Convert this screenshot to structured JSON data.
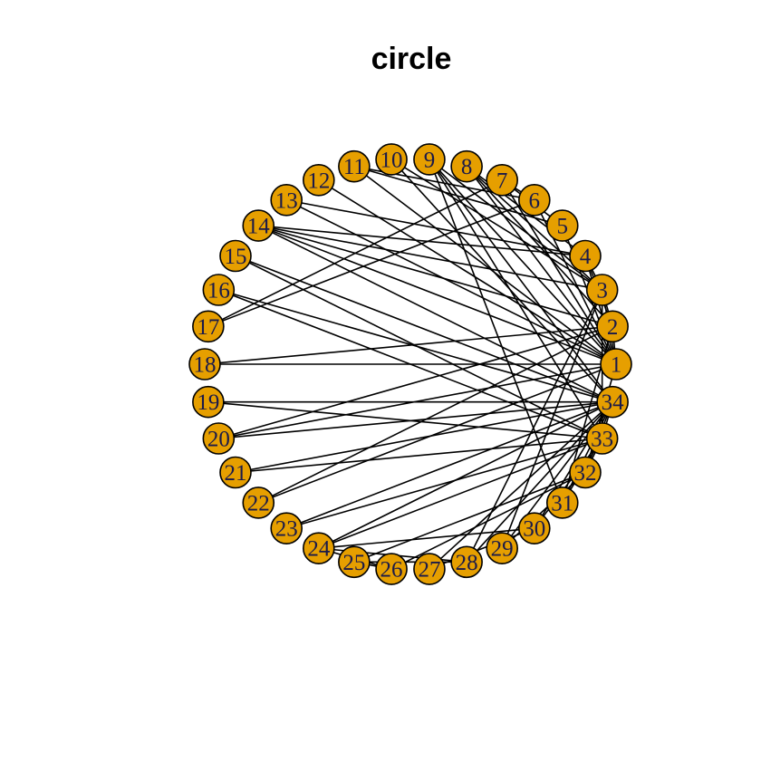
{
  "title": "circle",
  "colors": {
    "node_fill": "#E69F00",
    "node_stroke": "#000000",
    "edge": "#000000",
    "label": "#1a1a4a"
  },
  "nodes": [
    "1",
    "2",
    "3",
    "4",
    "5",
    "6",
    "7",
    "8",
    "9",
    "10",
    "11",
    "12",
    "13",
    "14",
    "15",
    "16",
    "17",
    "18",
    "19",
    "20",
    "21",
    "22",
    "23",
    "24",
    "25",
    "26",
    "27",
    "28",
    "29",
    "30",
    "31",
    "32",
    "33",
    "34"
  ],
  "edges": [
    [
      1,
      2
    ],
    [
      1,
      3
    ],
    [
      1,
      4
    ],
    [
      1,
      5
    ],
    [
      1,
      6
    ],
    [
      1,
      7
    ],
    [
      1,
      8
    ],
    [
      1,
      9
    ],
    [
      1,
      11
    ],
    [
      1,
      12
    ],
    [
      1,
      13
    ],
    [
      1,
      14
    ],
    [
      1,
      18
    ],
    [
      1,
      20
    ],
    [
      1,
      22
    ],
    [
      1,
      32
    ],
    [
      2,
      3
    ],
    [
      2,
      4
    ],
    [
      2,
      8
    ],
    [
      2,
      14
    ],
    [
      2,
      18
    ],
    [
      2,
      20
    ],
    [
      2,
      22
    ],
    [
      2,
      31
    ],
    [
      3,
      4
    ],
    [
      3,
      8
    ],
    [
      3,
      9
    ],
    [
      3,
      10
    ],
    [
      3,
      14
    ],
    [
      3,
      28
    ],
    [
      3,
      29
    ],
    [
      3,
      33
    ],
    [
      4,
      8
    ],
    [
      4,
      13
    ],
    [
      4,
      14
    ],
    [
      5,
      7
    ],
    [
      5,
      11
    ],
    [
      6,
      7
    ],
    [
      6,
      11
    ],
    [
      6,
      17
    ],
    [
      7,
      17
    ],
    [
      9,
      31
    ],
    [
      9,
      33
    ],
    [
      9,
      34
    ],
    [
      10,
      34
    ],
    [
      14,
      34
    ],
    [
      15,
      33
    ],
    [
      15,
      34
    ],
    [
      16,
      33
    ],
    [
      16,
      34
    ],
    [
      19,
      33
    ],
    [
      19,
      34
    ],
    [
      20,
      34
    ],
    [
      21,
      33
    ],
    [
      21,
      34
    ],
    [
      23,
      33
    ],
    [
      23,
      34
    ],
    [
      24,
      26
    ],
    [
      24,
      28
    ],
    [
      24,
      30
    ],
    [
      24,
      33
    ],
    [
      24,
      34
    ],
    [
      25,
      26
    ],
    [
      25,
      28
    ],
    [
      25,
      32
    ],
    [
      26,
      32
    ],
    [
      27,
      30
    ],
    [
      27,
      34
    ],
    [
      28,
      34
    ],
    [
      29,
      32
    ],
    [
      29,
      34
    ],
    [
      30,
      33
    ],
    [
      30,
      34
    ],
    [
      31,
      33
    ],
    [
      31,
      34
    ],
    [
      32,
      33
    ],
    [
      32,
      34
    ],
    [
      33,
      34
    ]
  ]
}
